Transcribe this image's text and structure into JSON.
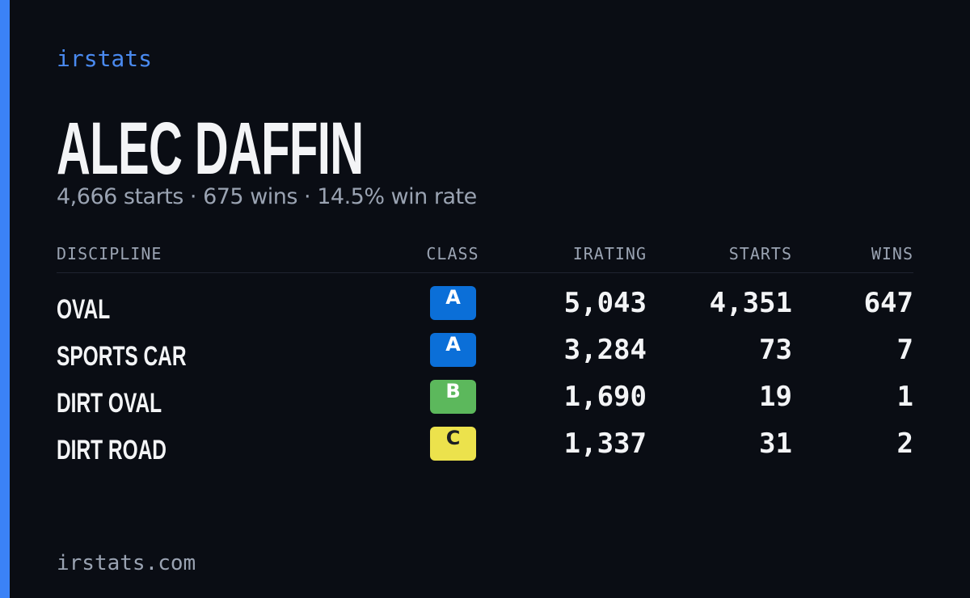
{
  "brand": "irstats",
  "driver": {
    "name": "ALEC DAFFIN",
    "summary": "4,666 starts · 675 wins · 14.5% win rate"
  },
  "table": {
    "headers": [
      "DISCIPLINE",
      "CLASS",
      "IRATING",
      "STARTS",
      "WINS"
    ],
    "rows": [
      {
        "discipline": "OVAL",
        "class": "A",
        "class_color": "#0b6fd8",
        "irating": "5,043",
        "starts": "4,351",
        "wins": "647"
      },
      {
        "discipline": "SPORTS CAR",
        "class": "A",
        "class_color": "#0b6fd8",
        "irating": "3,284",
        "starts": "73",
        "wins": "7"
      },
      {
        "discipline": "DIRT OVAL",
        "class": "B",
        "class_color": "#5cb85c",
        "irating": "1,690",
        "starts": "19",
        "wins": "1"
      },
      {
        "discipline": "DIRT ROAD",
        "class": "C",
        "class_color": "#ece24c",
        "irating": "1,337",
        "starts": "31",
        "wins": "2"
      }
    ]
  },
  "footer": "irstats.com"
}
